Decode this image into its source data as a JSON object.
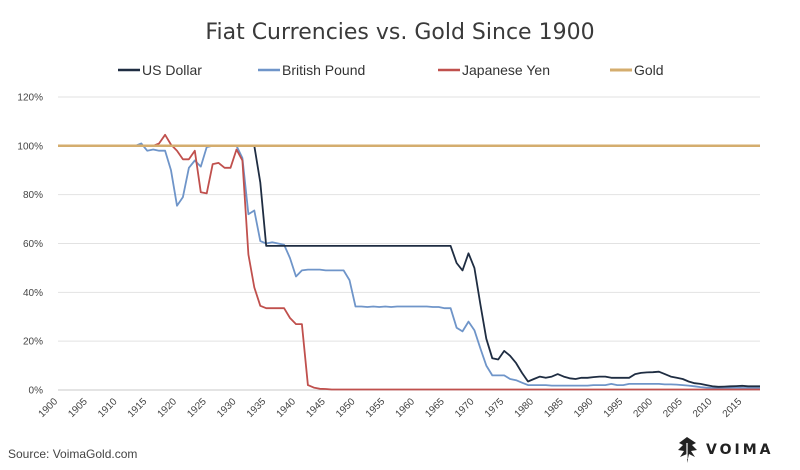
{
  "chart_data": {
    "type": "line",
    "title": "Fiat Currencies vs. Gold Since 1900",
    "ylim": [
      0,
      120
    ],
    "y_ticks": [
      0,
      20,
      40,
      60,
      80,
      100,
      120
    ],
    "y_tick_suffix": "%",
    "xlim": [
      1900,
      2018
    ],
    "x_ticks": [
      1900,
      1905,
      1910,
      1915,
      1920,
      1925,
      1930,
      1935,
      1940,
      1945,
      1950,
      1955,
      1960,
      1965,
      1970,
      1975,
      1980,
      1985,
      1990,
      1995,
      2000,
      2005,
      2010,
      2015
    ],
    "grid": "horizontal",
    "legend_position": "top",
    "series": [
      {
        "name": "US Dollar",
        "color": "#1f2d42",
        "x": [
          1900,
          1933,
          1934,
          1935,
          1966,
          1967,
          1968,
          1969,
          1970,
          1971,
          1972,
          1973,
          1974,
          1975,
          1976,
          1977,
          1978,
          1979,
          1980,
          1981,
          1982,
          1983,
          1984,
          1985,
          1986,
          1987,
          1988,
          1989,
          1990,
          1991,
          1992,
          1993,
          1994,
          1995,
          1996,
          1997,
          1998,
          1999,
          2000,
          2001,
          2002,
          2003,
          2004,
          2005,
          2006,
          2007,
          2008,
          2009,
          2010,
          2011,
          2012,
          2013,
          2014,
          2015,
          2016,
          2017,
          2018
        ],
        "y": [
          100,
          100,
          85,
          59,
          59,
          52,
          49,
          56,
          50,
          35,
          21,
          13,
          12.5,
          16,
          14,
          11,
          7,
          3.5,
          4.5,
          5.5,
          5,
          5.5,
          6.5,
          5.5,
          4.8,
          4.5,
          5,
          5,
          5.3,
          5.5,
          5.5,
          5,
          5,
          5,
          5,
          6.5,
          7,
          7.2,
          7.3,
          7.5,
          6.5,
          5.5,
          5,
          4.5,
          3.5,
          2.8,
          2.5,
          2,
          1.5,
          1.3,
          1.4,
          1.5,
          1.6,
          1.7,
          1.5,
          1.5,
          1.5
        ]
      },
      {
        "name": "British Pound",
        "color": "#6f95c9",
        "x": [
          1900,
          1913,
          1914,
          1915,
          1916,
          1917,
          1918,
          1919,
          1920,
          1921,
          1922,
          1923,
          1924,
          1925,
          1926,
          1930,
          1931,
          1932,
          1933,
          1934,
          1935,
          1936,
          1937,
          1938,
          1939,
          1940,
          1941,
          1942,
          1943,
          1944,
          1945,
          1946,
          1947,
          1948,
          1949,
          1950,
          1951,
          1952,
          1953,
          1954,
          1955,
          1956,
          1957,
          1958,
          1959,
          1960,
          1961,
          1962,
          1963,
          1964,
          1965,
          1966,
          1967,
          1968,
          1969,
          1970,
          1971,
          1972,
          1973,
          1974,
          1975,
          1976,
          1977,
          1978,
          1979,
          1980,
          1981,
          1982,
          1983,
          1984,
          1985,
          1986,
          1987,
          1988,
          1989,
          1990,
          1991,
          1992,
          1993,
          1994,
          1995,
          1996,
          1997,
          1998,
          1999,
          2000,
          2001,
          2002,
          2003,
          2004,
          2005,
          2006,
          2007,
          2008,
          2009,
          2010,
          2011,
          2012,
          2013,
          2014,
          2015,
          2016,
          2017,
          2018
        ],
        "y": [
          100,
          100,
          101,
          98,
          98.5,
          98,
          98,
          90,
          75.5,
          79,
          91,
          94,
          91.5,
          99.5,
          100,
          100,
          95,
          72,
          73.5,
          61,
          60,
          60.5,
          60,
          59.5,
          54,
          46.5,
          49,
          49.3,
          49.3,
          49.3,
          49,
          49,
          49,
          49,
          45,
          34.2,
          34.2,
          34,
          34.2,
          34,
          34.2,
          34,
          34.2,
          34.2,
          34.2,
          34.2,
          34.2,
          34.2,
          34,
          34,
          33.5,
          33.5,
          25.5,
          24,
          28,
          24.5,
          17,
          10,
          6,
          6,
          6,
          4.5,
          4,
          3,
          2,
          2,
          2,
          2,
          1.8,
          1.8,
          1.8,
          1.8,
          1.8,
          1.8,
          1.8,
          2,
          2,
          2,
          2.5,
          2,
          2,
          2.5,
          2.5,
          2.5,
          2.5,
          2.5,
          2.5,
          2.3,
          2.3,
          2.2,
          2,
          1.8,
          1.5,
          1.2,
          1,
          0.8,
          0.7,
          0.8,
          0.9,
          1,
          0.8,
          0.8,
          0.8,
          0.8
        ]
      },
      {
        "name": "Japanese Yen",
        "color": "#c0504d",
        "x": [
          1900,
          1916,
          1917,
          1918,
          1919,
          1920,
          1921,
          1922,
          1923,
          1924,
          1925,
          1926,
          1927,
          1928,
          1929,
          1930,
          1931,
          1932,
          1933,
          1934,
          1935,
          1936,
          1937,
          1938,
          1939,
          1940,
          1941,
          1942,
          1943,
          1944,
          1945,
          1946,
          2018
        ],
        "y": [
          100,
          100,
          101,
          104.5,
          100.5,
          98,
          94.5,
          94.5,
          98,
          81,
          80.5,
          92.5,
          93,
          91,
          91,
          98.5,
          94,
          55.5,
          42,
          34.5,
          33.5,
          33.5,
          33.5,
          33.5,
          29.5,
          27,
          27,
          2,
          1,
          0.5,
          0.4,
          0.2,
          0.2
        ]
      },
      {
        "name": "Gold",
        "color": "#d4ad6e",
        "x": [
          1900,
          2018
        ],
        "y": [
          100,
          100
        ]
      }
    ]
  },
  "footer": {
    "source": "Source: VoimaGold.com",
    "brand": "VOIMA"
  }
}
